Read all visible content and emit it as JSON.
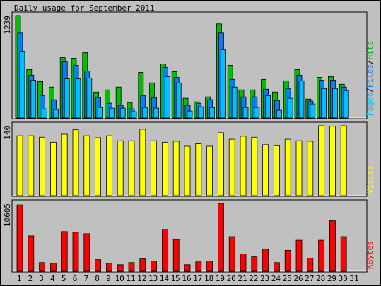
{
  "chart_data": [
    {
      "type": "bar",
      "title": "Daily usage for September 2011",
      "series": [
        {
          "name": "Hits",
          "color": "#00c000",
          "values": [
            1239,
            586,
            441,
            374,
            730,
            722,
            790,
            314,
            340,
            374,
            187,
            552,
            425,
            654,
            560,
            238,
            195,
            255,
            1138,
            637,
            340,
            340,
            467,
            314,
            450,
            586,
            229,
            492,
            501,
            408,
            0
          ]
        },
        {
          "name": "Files",
          "color": "#0080ff",
          "values": [
            1027,
            518,
            272,
            221,
            679,
            637,
            569,
            246,
            178,
            153,
            110,
            272,
            246,
            611,
            492,
            153,
            178,
            221,
            1027,
            467,
            255,
            255,
            348,
            212,
            357,
            518,
            204,
            458,
            458,
            374,
            0
          ]
        },
        {
          "name": "Pages",
          "color": "#00c0ff",
          "values": [
            807,
            458,
            110,
            102,
            475,
            475,
            484,
            127,
            119,
            119,
            76,
            127,
            119,
            501,
            425,
            85,
            136,
            127,
            824,
            374,
            127,
            127,
            272,
            93,
            238,
            450,
            170,
            357,
            357,
            331,
            0
          ]
        }
      ],
      "ylim": [
        0,
        1239
      ],
      "yticks": [
        1239
      ],
      "legend_separator": "/"
    },
    {
      "type": "bar",
      "series": [
        {
          "name": "Visits",
          "color": "#ffff00",
          "values": [
            120,
            120,
            117,
            107,
            123,
            132,
            120,
            116,
            120,
            110,
            110,
            133,
            110,
            107,
            109,
            99,
            104,
            99,
            126,
            113,
            119,
            117,
            102,
            100,
            113,
            110,
            109,
            140,
            139,
            140,
            0
          ]
        }
      ],
      "ylim": [
        0,
        140
      ],
      "yticks": [
        140
      ]
    },
    {
      "type": "bar",
      "series": [
        {
          "name": "KBytes",
          "color": "#ff0000",
          "values": [
            10378,
            5527,
            1354,
            1241,
            6204,
            6091,
            5866,
            1805,
            1241,
            1015,
            1354,
            1918,
            1579,
            6542,
            4963,
            1015,
            1466,
            1579,
            10605,
            5414,
            2707,
            2256,
            3497,
            1354,
            3271,
            4850,
            2030,
            4850,
            7896,
            5414,
            0
          ]
        }
      ],
      "ylim": [
        0,
        10605
      ],
      "yticks": [
        10605
      ],
      "categories": [
        "1",
        "2",
        "3",
        "4",
        "5",
        "6",
        "7",
        "8",
        "9",
        "10",
        "11",
        "12",
        "13",
        "14",
        "15",
        "16",
        "17",
        "18",
        "19",
        "20",
        "21",
        "22",
        "23",
        "24",
        "25",
        "26",
        "27",
        "28",
        "29",
        "30",
        "31"
      ],
      "category_colors": [
        "#000000",
        "#000000",
        "#00c000",
        "#00c000",
        "#000000",
        "#000000",
        "#000000",
        "#000000",
        "#000000",
        "#00c000",
        "#00c000",
        "#000000",
        "#000000",
        "#000000",
        "#000000",
        "#000000",
        "#00c000",
        "#00c000",
        "#000000",
        "#000000",
        "#000000",
        "#000000",
        "#000000",
        "#00c000",
        "#00c000",
        "#000000",
        "#000000",
        "#000000",
        "#000000",
        "#000000",
        "#00c000"
      ]
    }
  ]
}
